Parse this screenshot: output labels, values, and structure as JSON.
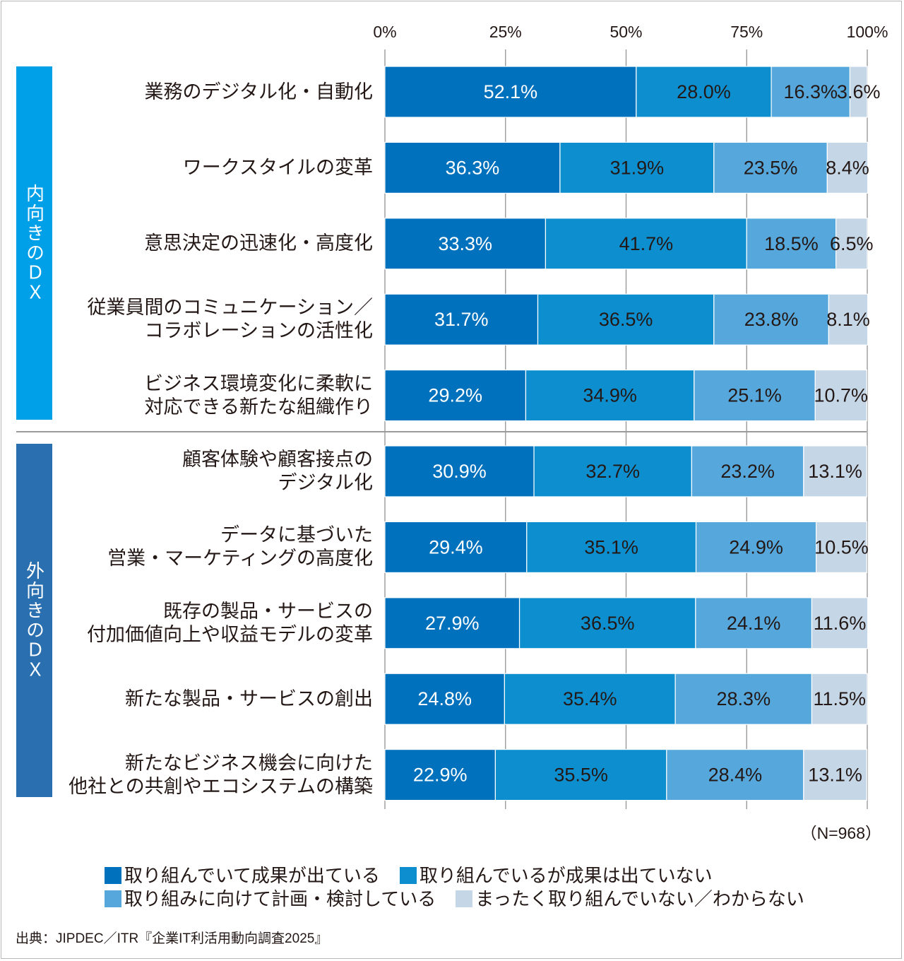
{
  "chart_data": {
    "type": "bar",
    "orientation": "horizontal",
    "stacked": true,
    "title": "",
    "xlabel": "",
    "ylabel": "",
    "xlim": [
      0,
      100
    ],
    "x_ticks": [
      "0%",
      "25%",
      "50%",
      "75%",
      "100%"
    ],
    "categories": [
      [
        "業務のデジタル化・自動化"
      ],
      [
        "ワークスタイルの変革"
      ],
      [
        "意思決定の迅速化・高度化"
      ],
      [
        "従業員間のコミュニケーション／",
        "コラボレーションの活性化"
      ],
      [
        "ビジネス環境変化に柔軟に",
        "対応できる新たな組織作り"
      ],
      [
        "顧客体験や顧客接点の",
        "デジタル化"
      ],
      [
        "データに基づいた",
        "営業・マーケティングの高度化"
      ],
      [
        "既存の製品・サービスの",
        "付加価値向上や収益モデルの変革"
      ],
      [
        "新たな製品・サービスの創出"
      ],
      [
        "新たなビジネス機会に向けた",
        "他社との共創やエコシステムの構築"
      ]
    ],
    "groups": [
      {
        "label": "内向きのＤＸ",
        "count": 5
      },
      {
        "label": "外向きのＤＸ",
        "count": 5
      }
    ],
    "series": [
      {
        "name": "取り組んでいて成果が出ている",
        "values": [
          52.1,
          36.3,
          33.3,
          31.7,
          29.2,
          30.9,
          29.4,
          27.9,
          24.8,
          22.9
        ]
      },
      {
        "name": "取り組んでいるが成果は出ていない",
        "values": [
          28.0,
          31.9,
          41.7,
          36.5,
          34.9,
          32.7,
          35.1,
          36.5,
          35.4,
          35.5
        ]
      },
      {
        "name": "取り組みに向けて計画・検討している",
        "values": [
          16.3,
          23.5,
          18.5,
          23.8,
          25.1,
          23.2,
          24.9,
          24.1,
          28.3,
          28.4
        ]
      },
      {
        "name": "まったく取り組んでいない／わからない",
        "values": [
          3.6,
          8.4,
          6.5,
          8.1,
          10.7,
          13.1,
          10.5,
          11.6,
          11.5,
          13.1
        ]
      }
    ],
    "colors": [
      "#0071bc",
      "#0d8fcf",
      "#56a8dc",
      "#c5d6e6"
    ],
    "label_colors": [
      "#ffffff",
      "#231815",
      "#231815",
      "#231815"
    ],
    "legend_position": "bottom"
  },
  "note": "（N=968）",
  "source": "出典：JIPDEC／ITR『企業IT利活用動向調査2025』",
  "group_colors": [
    "#00a0e9",
    "#2a6faf"
  ]
}
